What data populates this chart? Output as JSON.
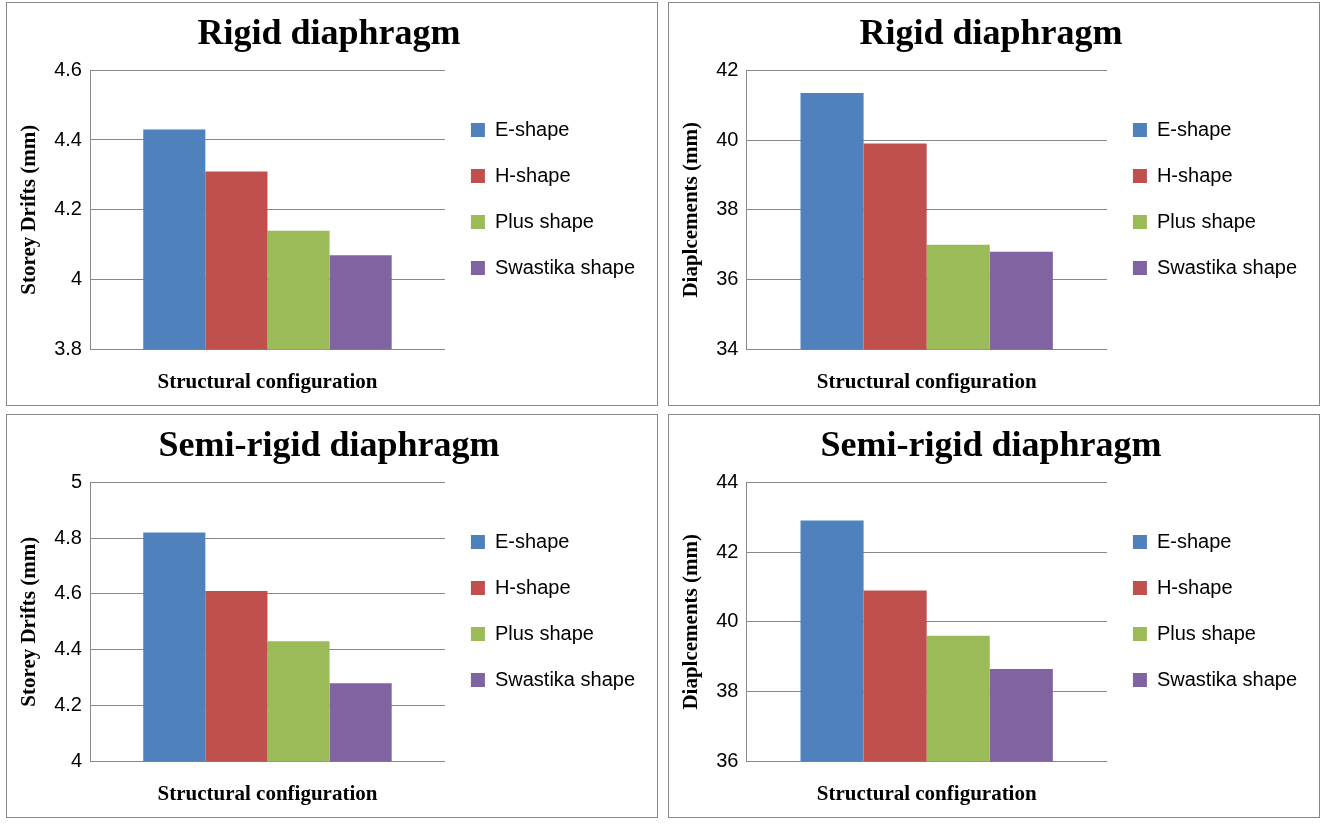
{
  "chart_data": [
    {
      "type": "bar",
      "title": "Rigid diaphragm",
      "xlabel": "Structural configuration",
      "ylabel": "Storey Drifts (mm)",
      "categories": [
        null
      ],
      "series": [
        {
          "name": "E-shape",
          "color": "#4f81bd",
          "values": [
            4.43
          ]
        },
        {
          "name": "H-shape",
          "color": "#c0504d",
          "values": [
            4.31
          ]
        },
        {
          "name": "Plus shape",
          "color": "#9bbb59",
          "values": [
            4.14
          ]
        },
        {
          "name": "Swastika shape",
          "color": "#8064a2",
          "values": [
            4.07
          ]
        }
      ],
      "ylim": [
        3.8,
        4.6
      ],
      "yticks": [
        3.8,
        4,
        4.2,
        4.4,
        4.6
      ],
      "grid": "y",
      "legend": "right"
    },
    {
      "type": "bar",
      "title": "Rigid diaphragm",
      "xlabel": "Structural configuration",
      "ylabel": "Diaplcements (mm)",
      "categories": [
        null
      ],
      "series": [
        {
          "name": "E-shape",
          "color": "#4f81bd",
          "values": [
            41.35
          ]
        },
        {
          "name": "H-shape",
          "color": "#c0504d",
          "values": [
            39.9
          ]
        },
        {
          "name": "Plus shape",
          "color": "#9bbb59",
          "values": [
            37.0
          ]
        },
        {
          "name": "Swastika shape",
          "color": "#8064a2",
          "values": [
            36.8
          ]
        }
      ],
      "ylim": [
        34,
        42
      ],
      "yticks": [
        34,
        36,
        38,
        40,
        42
      ],
      "grid": "y",
      "legend": "right"
    },
    {
      "type": "bar",
      "title": "Semi-rigid diaphragm",
      "xlabel": "Structural configuration",
      "ylabel": "Storey Drifts (mm)",
      "categories": [
        null
      ],
      "series": [
        {
          "name": "E-shape",
          "color": "#4f81bd",
          "values": [
            4.82
          ]
        },
        {
          "name": "H-shape",
          "color": "#c0504d",
          "values": [
            4.61
          ]
        },
        {
          "name": "Plus shape",
          "color": "#9bbb59",
          "values": [
            4.43
          ]
        },
        {
          "name": "Swastika shape",
          "color": "#8064a2",
          "values": [
            4.28
          ]
        }
      ],
      "ylim": [
        4,
        5
      ],
      "yticks": [
        4,
        4.2,
        4.4,
        4.6,
        4.8,
        5
      ],
      "grid": "y",
      "legend": "right"
    },
    {
      "type": "bar",
      "title": "Semi-rigid diaphragm",
      "xlabel": "Structural configuration",
      "ylabel": "Diaplcements (mm)",
      "categories": [
        null
      ],
      "series": [
        {
          "name": "E-shape",
          "color": "#4f81bd",
          "values": [
            42.9
          ]
        },
        {
          "name": "H-shape",
          "color": "#c0504d",
          "values": [
            40.9
          ]
        },
        {
          "name": "Plus shape",
          "color": "#9bbb59",
          "values": [
            39.6
          ]
        },
        {
          "name": "Swastika shape",
          "color": "#8064a2",
          "values": [
            38.65
          ]
        }
      ],
      "ylim": [
        36,
        44
      ],
      "yticks": [
        36,
        38,
        40,
        42,
        44
      ],
      "grid": "y",
      "legend": "right"
    }
  ]
}
